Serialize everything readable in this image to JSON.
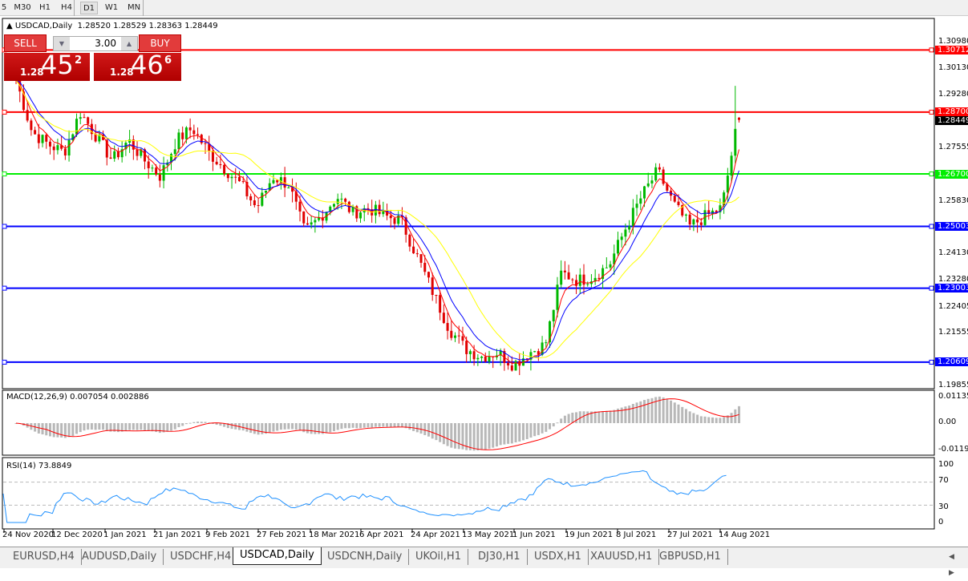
{
  "toolbar": {
    "timeframes": [
      "5",
      "M30",
      "H1",
      "H4",
      "D1",
      "W1",
      "MN"
    ],
    "active": "D1"
  },
  "chart": {
    "symbol": "USDCAD,Daily",
    "ohlc": "1.28520 1.28529 1.28363 1.28449"
  },
  "trade_panel": {
    "sell_label": "SELL",
    "buy_label": "BUY",
    "lots": "3.00",
    "sell_prefix": "1.28",
    "sell_main": "45",
    "sell_pip": "2",
    "buy_prefix": "1.28",
    "buy_main": "46",
    "buy_pip": "6"
  },
  "colors": {
    "bull": "#00b800",
    "bear": "#e00000",
    "ma_fast": "#ff0000",
    "ma_mid": "#0000ff",
    "ma_slow": "#ffff00",
    "macd_hist": "#b8b8b8",
    "macd_signal": "#ff0000",
    "rsi": "#1e90ff"
  },
  "chart_data": [
    {
      "type": "candlestick",
      "title": "USDCAD,Daily",
      "y_ticks": [
        "1.30980",
        "1.30130",
        "1.29280",
        "1.27555",
        "1.25830",
        "1.24130",
        "1.23280",
        "1.22405",
        "1.21555",
        "1.19855"
      ],
      "ylim": [
        1.19855,
        1.3098
      ],
      "x_ticks": [
        "24 Nov 2020",
        "12 Dec 2020",
        "1 Jan 2021",
        "21 Jan 2021",
        "9 Feb 2021",
        "27 Feb 2021",
        "18 Mar 2021",
        "6 Apr 2021",
        "24 Apr 2021",
        "13 May 2021",
        "1 Jun 2021",
        "19 Jun 2021",
        "8 Jul 2021",
        "27 Jul 2021",
        "14 Aug 2021"
      ],
      "close_approx": [
        1.2974,
        1.2805,
        1.2766,
        1.274,
        1.287,
        1.2792,
        1.2714,
        1.2779,
        1.2714,
        1.2662,
        1.2779,
        1.2818,
        1.274,
        1.2688,
        1.2636,
        1.2559,
        1.2662,
        1.2636,
        1.2481,
        1.2533,
        1.2597,
        1.2545,
        1.2559,
        1.2533,
        1.252,
        1.2403,
        1.2286,
        1.217,
        1.2105,
        1.2079,
        1.2092,
        1.2053,
        1.2092,
        1.2118,
        1.2351,
        1.2325,
        1.2338,
        1.2377,
        1.2494,
        1.2597,
        1.268,
        1.2572,
        1.25,
        1.2533,
        1.256,
        1.2844
      ],
      "last_candle": {
        "open": 1.2852,
        "high": 1.28529,
        "low": 1.28363,
        "close": 1.28449
      },
      "horizontal_lines": [
        {
          "price": "1.30712",
          "color": "#ff0000"
        },
        {
          "price": "1.28700",
          "color": "#ff0000"
        },
        {
          "price": "1.26700",
          "color": "#00ee00"
        },
        {
          "price": "1.25003",
          "color": "#0000ff"
        },
        {
          "price": "1.23003",
          "color": "#0000ff"
        },
        {
          "price": "1.20609",
          "color": "#0000ff"
        }
      ],
      "current_price": "1.28449"
    },
    {
      "type": "bar",
      "title": "MACD(12,26,9) 0.007054 0.002886",
      "y_ticks": [
        "0.01135",
        "0.00",
        "-0.01190"
      ],
      "ylim": [
        -0.0119,
        0.01135
      ]
    },
    {
      "type": "line",
      "title": "RSI(14) 73.8849",
      "y_ticks": [
        "100",
        "70",
        "30",
        "0"
      ],
      "ylim": [
        0,
        100
      ],
      "levels": [
        70,
        30
      ]
    }
  ],
  "tabs": [
    "EURUSD,H4",
    "AUDUSD,Daily",
    "USDCHF,H4",
    "USDCAD,Daily",
    "USDCNH,Daily",
    "UKOil,H1",
    "DJ30,H1",
    "USDX,H1",
    "XAUUSD,H1",
    "GBPUSD,H1"
  ],
  "active_tab": "USDCAD,Daily"
}
